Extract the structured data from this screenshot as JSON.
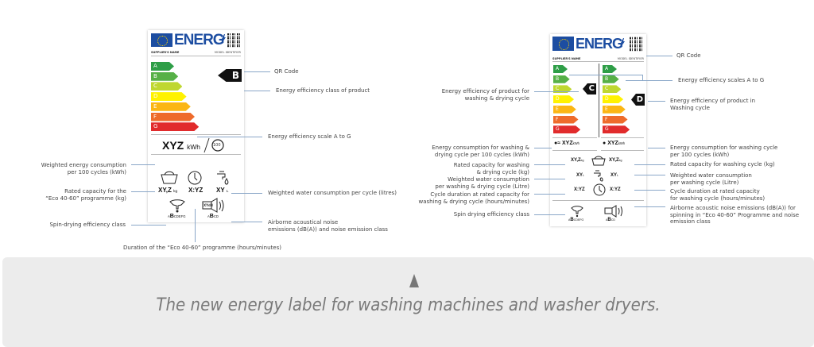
{
  "colors": {
    "A": "#2e9e47",
    "B": "#56b047",
    "C": "#bfd730",
    "D": "#fff200",
    "E": "#fbb614",
    "F": "#ee6b2b",
    "G": "#e12b2c",
    "eu_blue": "#1c4da1"
  },
  "classes": [
    "A",
    "B",
    "C",
    "D",
    "E",
    "F",
    "G"
  ],
  "label_common": {
    "brand": "ENERG",
    "supplier": "SUPPLIER'S NAME",
    "model": "MODEL IDENTIFIER"
  },
  "washer_label": {
    "class": "B",
    "energy_value": "XYZ",
    "energy_unit": "kWh",
    "cycles": "100",
    "capacity_value": "XY,Z",
    "capacity_unit": "kg",
    "duration_value": "X:YZ",
    "water_value": "XY",
    "water_unit": "L",
    "spin_scale_pre": "A",
    "spin_class": "B",
    "spin_scale_post": "CDEFG",
    "noise_value": "XY",
    "noise_unit": "dB",
    "noise_scale_pre": "A",
    "noise_class": "B",
    "noise_scale_post": "CD",
    "annotations": {
      "qr": "QR Code",
      "class": "Energy efficiency class of product",
      "scale": "Energy efficiency scale A to G",
      "energy": [
        "Weighted energy consumption",
        "per 100 cycles (kWh)"
      ],
      "capacity": [
        "Rated capacity for the",
        "“Eco 40-60” programme (kg)"
      ],
      "water": "Weighted water consumption per cycle (litres)",
      "spin": "Spin-drying efficiency class",
      "noise": [
        "Airborne acoustical noise",
        "emissions (dB(A)) and noise emission class"
      ],
      "duration": "Duration of the “Eco 40-60” programme (hours/minutes)"
    }
  },
  "washer_dryer_label": {
    "class_wash_dry": "C",
    "class_wash": "D",
    "energy_wd": "XYZ",
    "energy_w": "XYZ",
    "energy_unit": "kWh",
    "capacity_wd": "XY,Z",
    "capacity_w": "XY,Z",
    "capacity_unit": "kg",
    "water_wd": "XY",
    "water_w": "XY",
    "water_unit": "L",
    "duration_wd": "X:YZ",
    "duration_w": "X:YZ",
    "spin_scale_pre": "A",
    "spin_class": "B",
    "spin_scale_post": "CDEFG",
    "noise_scale_pre": "A",
    "noise_class": "B",
    "noise_scale_post": "CD",
    "annotations": {
      "qr": "QR Code",
      "scales": "Energy efficiency scales A to G",
      "class_wd": [
        "Energy efficiency of product for",
        "washing & drying cycle"
      ],
      "class_w": [
        "Energy efficiency of product in",
        "Washing cycle"
      ],
      "energy_wd": [
        "Energy consumption for washing &",
        "drying cycle per 100 cycles (kWh)"
      ],
      "energy_w": [
        "Energy consumption for washing cycle",
        "per 100 cycles (kWh)"
      ],
      "capacity_wd": [
        "Rated capacity for washing",
        "& drying cycle (kg)"
      ],
      "capacity_w": "Rated capacity for washing cycle (kg)",
      "water_wd": [
        "Weighted water consumption",
        "per washing & drying cycle  (Litre)"
      ],
      "water_w": [
        "Weighted water consumption",
        "per washing cycle  (Litre)"
      ],
      "duration_wd": [
        "Cycle duration at rated capacity for",
        "washing & drying cycle (hours/minutes)"
      ],
      "duration_w": [
        "Cycle duration at rated capacity",
        "for washing cycle (hours/minutes)"
      ],
      "spin": "Spin drying efficiency class",
      "noise": [
        "Airborne acoustic noise emissions (dB(A)) for",
        "spinning in “Eco 40-60” Programme and noise",
        "emission class"
      ]
    }
  },
  "caption": "The new energy label for washing machines and washer dryers."
}
